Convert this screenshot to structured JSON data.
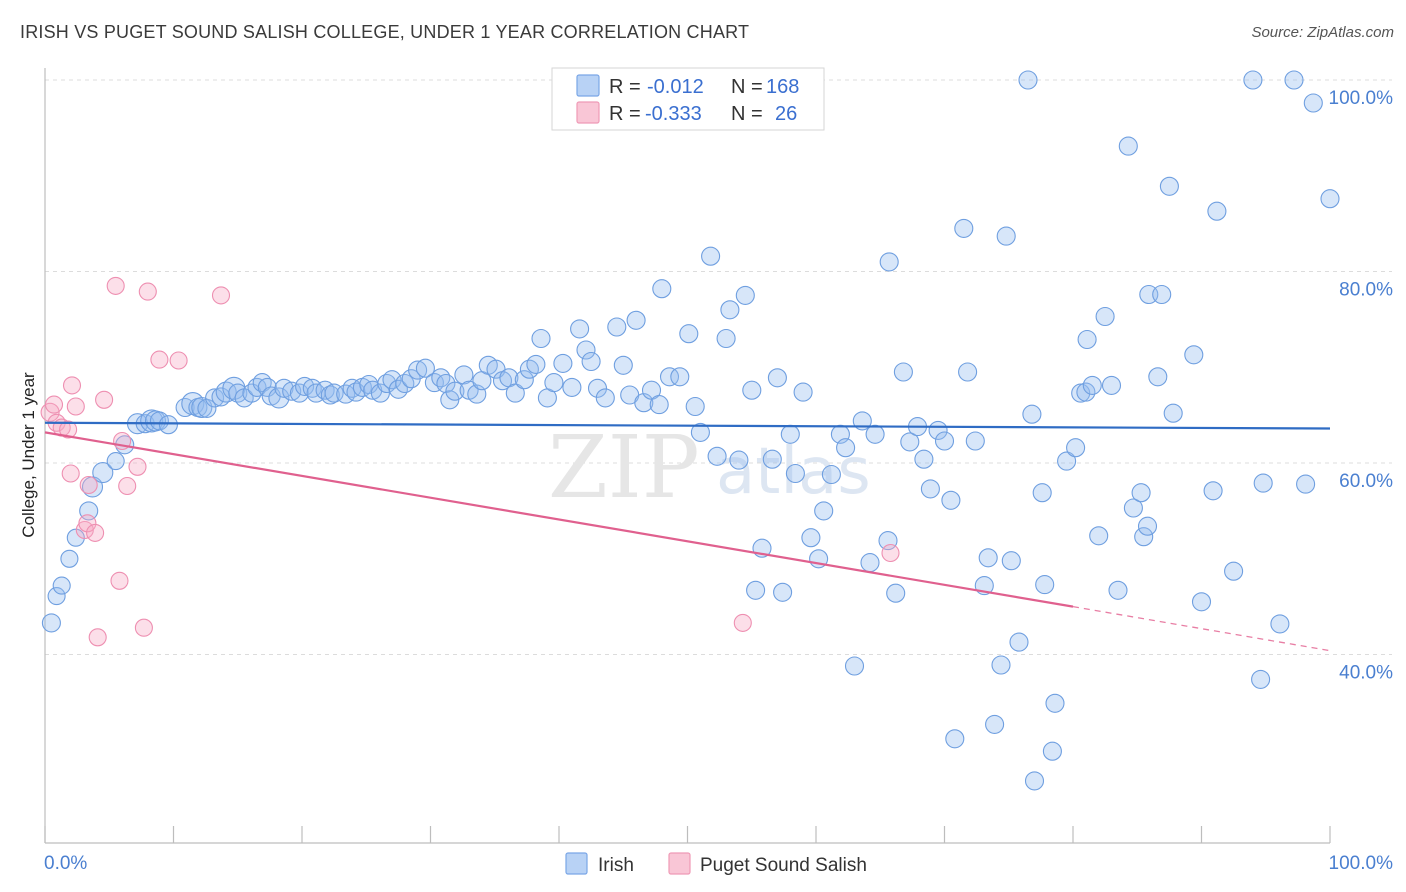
{
  "title": "IRISH VS PUGET SOUND SALISH COLLEGE, UNDER 1 YEAR CORRELATION CHART",
  "source": "Source: ZipAtlas.com",
  "watermark": "ZIP",
  "watermark2": "atlas",
  "legend": {
    "rows": [
      {
        "r_label": "R =",
        "r_value": "-0.012",
        "n_label": "N =",
        "n_value": "168"
      },
      {
        "r_label": "R =",
        "r_value": "-0.333",
        "n_label": "N =",
        "n_value": "26"
      }
    ]
  },
  "chart_data": {
    "type": "scatter",
    "title": "IRISH VS PUGET SOUND SALISH COLLEGE, UNDER 1 YEAR CORRELATION CHART",
    "xlabel": "",
    "ylabel": "College, Under 1 year",
    "xlim": [
      0,
      100
    ],
    "ylim": [
      20,
      102
    ],
    "x_tick_labels": [
      "0.0%",
      "100.0%"
    ],
    "y_tick_labels": [
      {
        "value": 40,
        "label": "40.0%"
      },
      {
        "value": 60,
        "label": "60.0%"
      },
      {
        "value": 80,
        "label": "80.0%"
      },
      {
        "value": 100,
        "label": "100.0%"
      }
    ],
    "grid": true,
    "legend_position": "bottom-center",
    "colors": {
      "irish": "#6fa0e6",
      "salish": "#f08db0",
      "irish_line": "#2f6cc4",
      "salish_line": "#e0608e"
    },
    "series": [
      {
        "name": "Irish",
        "trend": {
          "x0": 0,
          "y0": 64.2,
          "x1": 100,
          "y1": 63.6
        },
        "points": [
          [
            0.5,
            43.3,
            14
          ],
          [
            0.9,
            46.1,
            13
          ],
          [
            1.3,
            47.2,
            13
          ],
          [
            1.9,
            50.0,
            13
          ],
          [
            2.4,
            52.2,
            13
          ],
          [
            3.4,
            55.0,
            14
          ],
          [
            3.7,
            57.5,
            16
          ],
          [
            4.5,
            59.0,
            16
          ],
          [
            5.5,
            60.2,
            13
          ],
          [
            6.2,
            61.9,
            14
          ],
          [
            7.2,
            64.1,
            16
          ],
          [
            7.8,
            64.1,
            14
          ],
          [
            8.3,
            64.4,
            18
          ],
          [
            8.6,
            64.4,
            16
          ],
          [
            8.9,
            64.4,
            14
          ],
          [
            9.6,
            64.0,
            14
          ],
          [
            10.9,
            65.8,
            14
          ],
          [
            11.5,
            66.2,
            18
          ],
          [
            11.9,
            65.8,
            14
          ],
          [
            12.2,
            65.8,
            16
          ],
          [
            12.6,
            65.7,
            14
          ],
          [
            13.2,
            66.8,
            14
          ],
          [
            13.7,
            66.9,
            14
          ],
          [
            14.1,
            67.4,
            16
          ],
          [
            14.7,
            67.8,
            18
          ],
          [
            15.0,
            67.3,
            14
          ],
          [
            15.5,
            66.8,
            14
          ],
          [
            16.1,
            67.3,
            14
          ],
          [
            16.5,
            67.9,
            14
          ],
          [
            16.9,
            68.4,
            14
          ],
          [
            17.3,
            67.9,
            14
          ],
          [
            17.6,
            67.0,
            14
          ],
          [
            18.2,
            66.8,
            16
          ],
          [
            18.6,
            67.8,
            14
          ],
          [
            19.2,
            67.5,
            14
          ],
          [
            19.8,
            67.3,
            14
          ],
          [
            20.2,
            68.0,
            14
          ],
          [
            20.8,
            67.8,
            14
          ],
          [
            21.1,
            67.3,
            14
          ],
          [
            21.8,
            67.6,
            14
          ],
          [
            22.2,
            67.1,
            14
          ],
          [
            22.5,
            67.3,
            14
          ],
          [
            23.4,
            67.2,
            14
          ],
          [
            23.9,
            67.8,
            14
          ],
          [
            24.2,
            67.4,
            14
          ],
          [
            24.7,
            67.9,
            14
          ],
          [
            25.2,
            68.2,
            14
          ],
          [
            25.5,
            67.6,
            14
          ],
          [
            26.1,
            67.3,
            14
          ],
          [
            26.6,
            68.3,
            14
          ],
          [
            27.0,
            68.7,
            14
          ],
          [
            27.5,
            67.7,
            14
          ],
          [
            28.0,
            68.3,
            14
          ],
          [
            28.5,
            68.8,
            14
          ],
          [
            29.0,
            69.7,
            14
          ],
          [
            29.6,
            69.9,
            14
          ],
          [
            30.3,
            68.4,
            14
          ],
          [
            30.8,
            68.9,
            14
          ],
          [
            31.2,
            68.3,
            14
          ],
          [
            31.5,
            66.6,
            14
          ],
          [
            31.9,
            67.5,
            14
          ],
          [
            32.6,
            69.2,
            14
          ],
          [
            33.0,
            67.6,
            14
          ],
          [
            33.6,
            67.2,
            14
          ],
          [
            34.0,
            68.6,
            14
          ],
          [
            34.5,
            70.2,
            14
          ],
          [
            35.1,
            69.8,
            14
          ],
          [
            35.6,
            68.6,
            14
          ],
          [
            36.1,
            68.9,
            14
          ],
          [
            36.6,
            67.3,
            14
          ],
          [
            37.3,
            68.7,
            14
          ],
          [
            37.7,
            69.8,
            14
          ],
          [
            38.2,
            70.3,
            14
          ],
          [
            38.6,
            73.0,
            14
          ],
          [
            39.1,
            66.8,
            14
          ],
          [
            39.6,
            68.4,
            14
          ],
          [
            40.3,
            70.4,
            14
          ],
          [
            41.0,
            67.9,
            14
          ],
          [
            41.6,
            74.0,
            14
          ],
          [
            42.1,
            71.8,
            14
          ],
          [
            42.5,
            70.6,
            14
          ],
          [
            43.0,
            67.8,
            14
          ],
          [
            43.6,
            66.8,
            14
          ],
          [
            44.5,
            74.2,
            14
          ],
          [
            45.0,
            70.2,
            14
          ],
          [
            45.5,
            67.1,
            14
          ],
          [
            46.0,
            74.9,
            14
          ],
          [
            46.6,
            66.3,
            14
          ],
          [
            47.2,
            67.6,
            14
          ],
          [
            47.8,
            66.1,
            14
          ],
          [
            48.0,
            78.2,
            14
          ],
          [
            48.6,
            69.0,
            14
          ],
          [
            49.4,
            69.0,
            14
          ],
          [
            50.1,
            73.5,
            14
          ],
          [
            50.6,
            65.9,
            14
          ],
          [
            51.0,
            63.2,
            14
          ],
          [
            51.8,
            81.6,
            14
          ],
          [
            52.3,
            60.7,
            14
          ],
          [
            53.0,
            73.0,
            14
          ],
          [
            53.3,
            76.0,
            14
          ],
          [
            54.0,
            60.3,
            14
          ],
          [
            54.5,
            77.5,
            14
          ],
          [
            55.0,
            67.6,
            14
          ],
          [
            55.3,
            46.7,
            14
          ],
          [
            55.8,
            51.1,
            14
          ],
          [
            56.6,
            60.4,
            14
          ],
          [
            57.0,
            68.9,
            14
          ],
          [
            57.4,
            46.5,
            14
          ],
          [
            58.0,
            63.0,
            14
          ],
          [
            58.4,
            58.9,
            14
          ],
          [
            59.0,
            67.4,
            14
          ],
          [
            59.6,
            52.2,
            14
          ],
          [
            60.2,
            50.0,
            14
          ],
          [
            60.6,
            55.0,
            14
          ],
          [
            61.2,
            58.8,
            14
          ],
          [
            61.9,
            63.0,
            14
          ],
          [
            62.3,
            61.6,
            14
          ],
          [
            63.0,
            38.8,
            14
          ],
          [
            63.6,
            64.4,
            14
          ],
          [
            64.2,
            49.6,
            14
          ],
          [
            64.6,
            63.0,
            14
          ],
          [
            65.6,
            51.9,
            14
          ],
          [
            65.7,
            81.0,
            14
          ],
          [
            66.2,
            46.4,
            14
          ],
          [
            66.8,
            69.5,
            14
          ],
          [
            67.3,
            62.2,
            14
          ],
          [
            67.9,
            63.8,
            14
          ],
          [
            68.4,
            60.4,
            14
          ],
          [
            68.9,
            57.3,
            14
          ],
          [
            69.5,
            63.4,
            14
          ],
          [
            70.0,
            62.3,
            14
          ],
          [
            70.5,
            56.1,
            14
          ],
          [
            70.8,
            31.2,
            14
          ],
          [
            71.5,
            84.5,
            14
          ],
          [
            71.8,
            69.5,
            14
          ],
          [
            72.4,
            62.3,
            14
          ],
          [
            73.1,
            47.2,
            14
          ],
          [
            73.4,
            50.1,
            14
          ],
          [
            73.9,
            32.7,
            14
          ],
          [
            74.4,
            38.9,
            14
          ],
          [
            74.8,
            83.7,
            14
          ],
          [
            75.2,
            49.8,
            14
          ],
          [
            75.8,
            41.3,
            14
          ],
          [
            76.5,
            100.0,
            14
          ],
          [
            76.8,
            65.1,
            14
          ],
          [
            77.0,
            26.8,
            14
          ],
          [
            77.6,
            56.9,
            14
          ],
          [
            77.8,
            47.3,
            14
          ],
          [
            78.4,
            29.9,
            14
          ],
          [
            78.6,
            34.9,
            14
          ],
          [
            79.5,
            60.2,
            14
          ],
          [
            80.2,
            61.6,
            14
          ],
          [
            80.6,
            67.3,
            14
          ],
          [
            81.0,
            67.4,
            14
          ],
          [
            81.1,
            72.9,
            14
          ],
          [
            81.5,
            68.1,
            14
          ],
          [
            82.0,
            52.4,
            14
          ],
          [
            82.5,
            75.3,
            14
          ],
          [
            83.0,
            68.1,
            14
          ],
          [
            83.5,
            46.7,
            14
          ],
          [
            84.3,
            93.1,
            14
          ],
          [
            84.7,
            55.3,
            14
          ],
          [
            85.3,
            56.9,
            14
          ],
          [
            85.5,
            52.3,
            14
          ],
          [
            85.8,
            53.4,
            14
          ],
          [
            85.9,
            77.6,
            14
          ],
          [
            86.6,
            69.0,
            14
          ],
          [
            86.9,
            77.6,
            14
          ],
          [
            87.5,
            88.9,
            14
          ],
          [
            87.8,
            65.2,
            14
          ],
          [
            89.4,
            71.3,
            14
          ],
          [
            90.0,
            45.5,
            14
          ],
          [
            90.9,
            57.1,
            14
          ],
          [
            91.2,
            86.3,
            14
          ],
          [
            92.5,
            48.7,
            14
          ],
          [
            94.0,
            100.0,
            14
          ],
          [
            94.6,
            37.4,
            14
          ],
          [
            94.8,
            57.9,
            14
          ],
          [
            96.1,
            43.2,
            14
          ],
          [
            97.2,
            100.0,
            14
          ],
          [
            98.1,
            57.8,
            14
          ],
          [
            98.7,
            97.6,
            14
          ],
          [
            100.0,
            87.6,
            14
          ]
        ]
      },
      {
        "name": "Puget Sound Salish",
        "trend": {
          "x0": 0,
          "y0": 63.2,
          "x1": 80,
          "y1": 45.0
        },
        "trend_extension": {
          "x0": 80,
          "y0": 45.0,
          "x1": 100,
          "y1": 40.4
        },
        "points": [
          [
            0.4,
            65.3,
            14
          ],
          [
            0.7,
            66.1,
            13
          ],
          [
            0.9,
            64.2,
            13
          ],
          [
            1.3,
            63.7,
            13
          ],
          [
            1.8,
            63.5,
            13
          ],
          [
            2.0,
            58.9,
            13
          ],
          [
            2.1,
            68.1,
            13
          ],
          [
            2.4,
            65.9,
            13
          ],
          [
            3.1,
            53.0,
            13
          ],
          [
            3.3,
            53.7,
            13
          ],
          [
            3.4,
            57.7,
            13
          ],
          [
            3.9,
            52.7,
            13
          ],
          [
            4.1,
            41.8,
            13
          ],
          [
            4.6,
            66.6,
            13
          ],
          [
            5.5,
            78.5,
            13
          ],
          [
            5.8,
            47.7,
            13
          ],
          [
            6.0,
            62.3,
            13
          ],
          [
            6.4,
            57.6,
            13
          ],
          [
            7.2,
            59.6,
            13
          ],
          [
            7.7,
            42.8,
            13
          ],
          [
            8.0,
            77.9,
            13
          ],
          [
            8.9,
            70.8,
            13
          ],
          [
            10.4,
            70.7,
            13
          ],
          [
            13.7,
            77.5,
            13
          ],
          [
            54.3,
            43.3,
            13
          ],
          [
            65.8,
            50.6,
            13
          ]
        ]
      }
    ]
  }
}
